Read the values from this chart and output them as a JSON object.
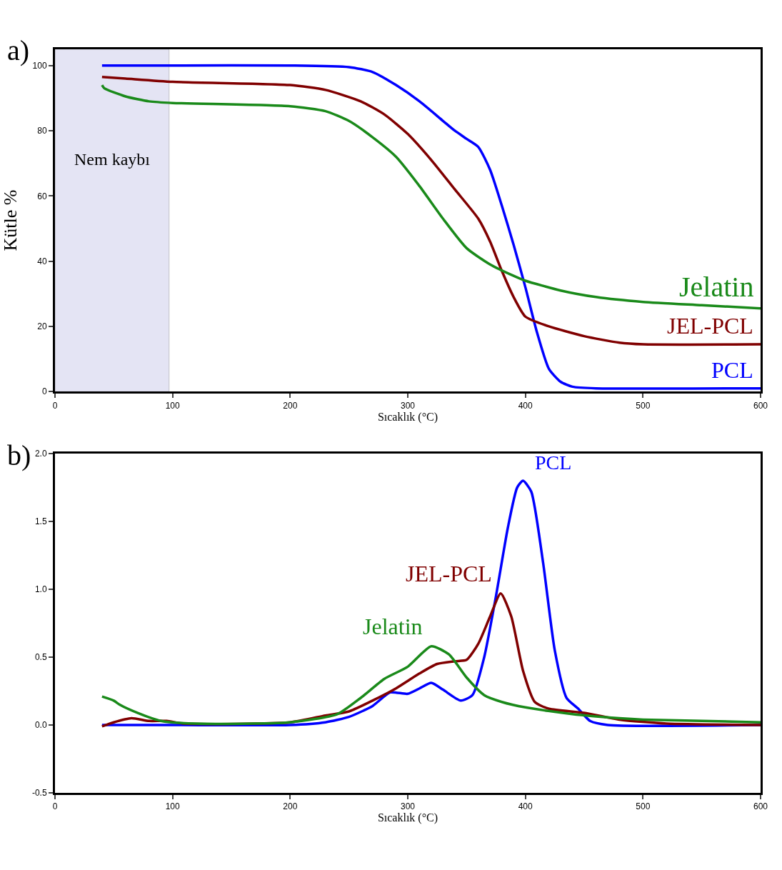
{
  "chart_data": [
    {
      "type": "line",
      "title": "a)",
      "xlabel": "Sıcaklık (°C)",
      "ylabel": "Kütle %",
      "xlim": [
        0,
        600
      ],
      "xticks": [
        0,
        100,
        200,
        300,
        400,
        500,
        600
      ],
      "ylim": [
        0,
        105
      ],
      "yticks": [
        0,
        20,
        40,
        60,
        80,
        100
      ],
      "bands": [
        {
          "axis": "x",
          "from": 0,
          "to": 97,
          "label": "Nem kaybı",
          "color": "#e4e4f4"
        }
      ],
      "series": [
        {
          "name": "PCL",
          "color": "#0000ff",
          "x": [
            40,
            100,
            200,
            250,
            270,
            290,
            310,
            330,
            340,
            350,
            360,
            370,
            380,
            390,
            400,
            410,
            420,
            430,
            440,
            460,
            600
          ],
          "values": [
            100,
            100,
            100,
            99.5,
            98,
            94,
            89,
            83,
            80,
            77.5,
            75,
            68,
            57,
            45,
            32,
            18,
            7,
            3,
            1.5,
            1,
            1
          ]
        },
        {
          "name": "JEL-PCL",
          "color": "#800000",
          "x": [
            40,
            60,
            100,
            200,
            230,
            260,
            280,
            300,
            320,
            340,
            360,
            370,
            380,
            390,
            400,
            420,
            450,
            480,
            500,
            600
          ],
          "values": [
            96.5,
            96,
            95,
            94,
            92.5,
            89,
            85,
            79,
            71,
            62,
            53,
            46,
            37,
            29,
            23,
            20,
            17,
            15,
            14.5,
            14.5
          ]
        },
        {
          "name": "Jelatin",
          "color": "#1a8a1a",
          "x": [
            40,
            42,
            60,
            80,
            100,
            200,
            230,
            250,
            270,
            290,
            310,
            330,
            350,
            370,
            390,
            400,
            430,
            460,
            500,
            550,
            600
          ],
          "values": [
            94,
            93,
            90.5,
            89,
            88.5,
            87.5,
            86,
            83,
            78,
            72,
            63,
            53,
            44,
            39,
            35.5,
            34,
            31,
            29,
            27.5,
            26.5,
            25.5
          ]
        }
      ]
    },
    {
      "type": "line",
      "title": "b)",
      "xlabel": "Sıcaklık (°C)",
      "xlim": [
        0,
        600
      ],
      "xticks": [
        0,
        100,
        200,
        300,
        400,
        500,
        600
      ],
      "ylim": [
        -0.5,
        2.0
      ],
      "yticks": [
        {
          "value": -0.5,
          "label": "-0.5"
        },
        {
          "value": 0,
          "label": "0.0"
        },
        {
          "value": 0.5,
          "label": "0.5"
        },
        {
          "value": 1,
          "label": "1.0"
        },
        {
          "value": 1.5,
          "label": "1.5"
        },
        {
          "value": 2,
          "label": "2.0"
        }
      ],
      "series": [
        {
          "name": "PCL",
          "color": "#0000ff",
          "x": [
            40,
            100,
            200,
            230,
            250,
            270,
            285,
            300,
            310,
            320,
            330,
            345,
            355,
            365,
            375,
            385,
            393,
            398,
            405,
            415,
            425,
            435,
            445,
            455,
            470,
            600
          ],
          "values": [
            0,
            0,
            0,
            0.02,
            0.06,
            0.14,
            0.24,
            0.23,
            0.27,
            0.31,
            0.26,
            0.18,
            0.22,
            0.5,
            0.95,
            1.45,
            1.75,
            1.8,
            1.72,
            1.2,
            0.55,
            0.2,
            0.12,
            0.03,
            0,
            0
          ]
        },
        {
          "name": "JEL-PCL",
          "color": "#800000",
          "x": [
            40,
            50,
            65,
            80,
            95,
            110,
            200,
            230,
            250,
            270,
            290,
            310,
            325,
            340,
            350,
            360,
            370,
            379,
            388,
            398,
            408,
            420,
            450,
            480,
            520,
            600
          ],
          "values": [
            -0.01,
            0.02,
            0.05,
            0.03,
            0.03,
            0.01,
            0.02,
            0.07,
            0.1,
            0.18,
            0.27,
            0.38,
            0.45,
            0.47,
            0.48,
            0.6,
            0.8,
            0.97,
            0.8,
            0.4,
            0.17,
            0.12,
            0.09,
            0.04,
            0.01,
            0
          ]
        },
        {
          "name": "Jelatin",
          "color": "#1a8a1a",
          "x": [
            40,
            50,
            55,
            70,
            90,
            120,
            200,
            240,
            260,
            280,
            300,
            320,
            335,
            350,
            365,
            380,
            400,
            440,
            480,
            500,
            600
          ],
          "values": [
            0.21,
            0.18,
            0.15,
            0.09,
            0.03,
            0.01,
            0.02,
            0.08,
            0.2,
            0.34,
            0.43,
            0.58,
            0.52,
            0.35,
            0.22,
            0.17,
            0.13,
            0.08,
            0.05,
            0.04,
            0.02
          ]
        }
      ]
    }
  ]
}
